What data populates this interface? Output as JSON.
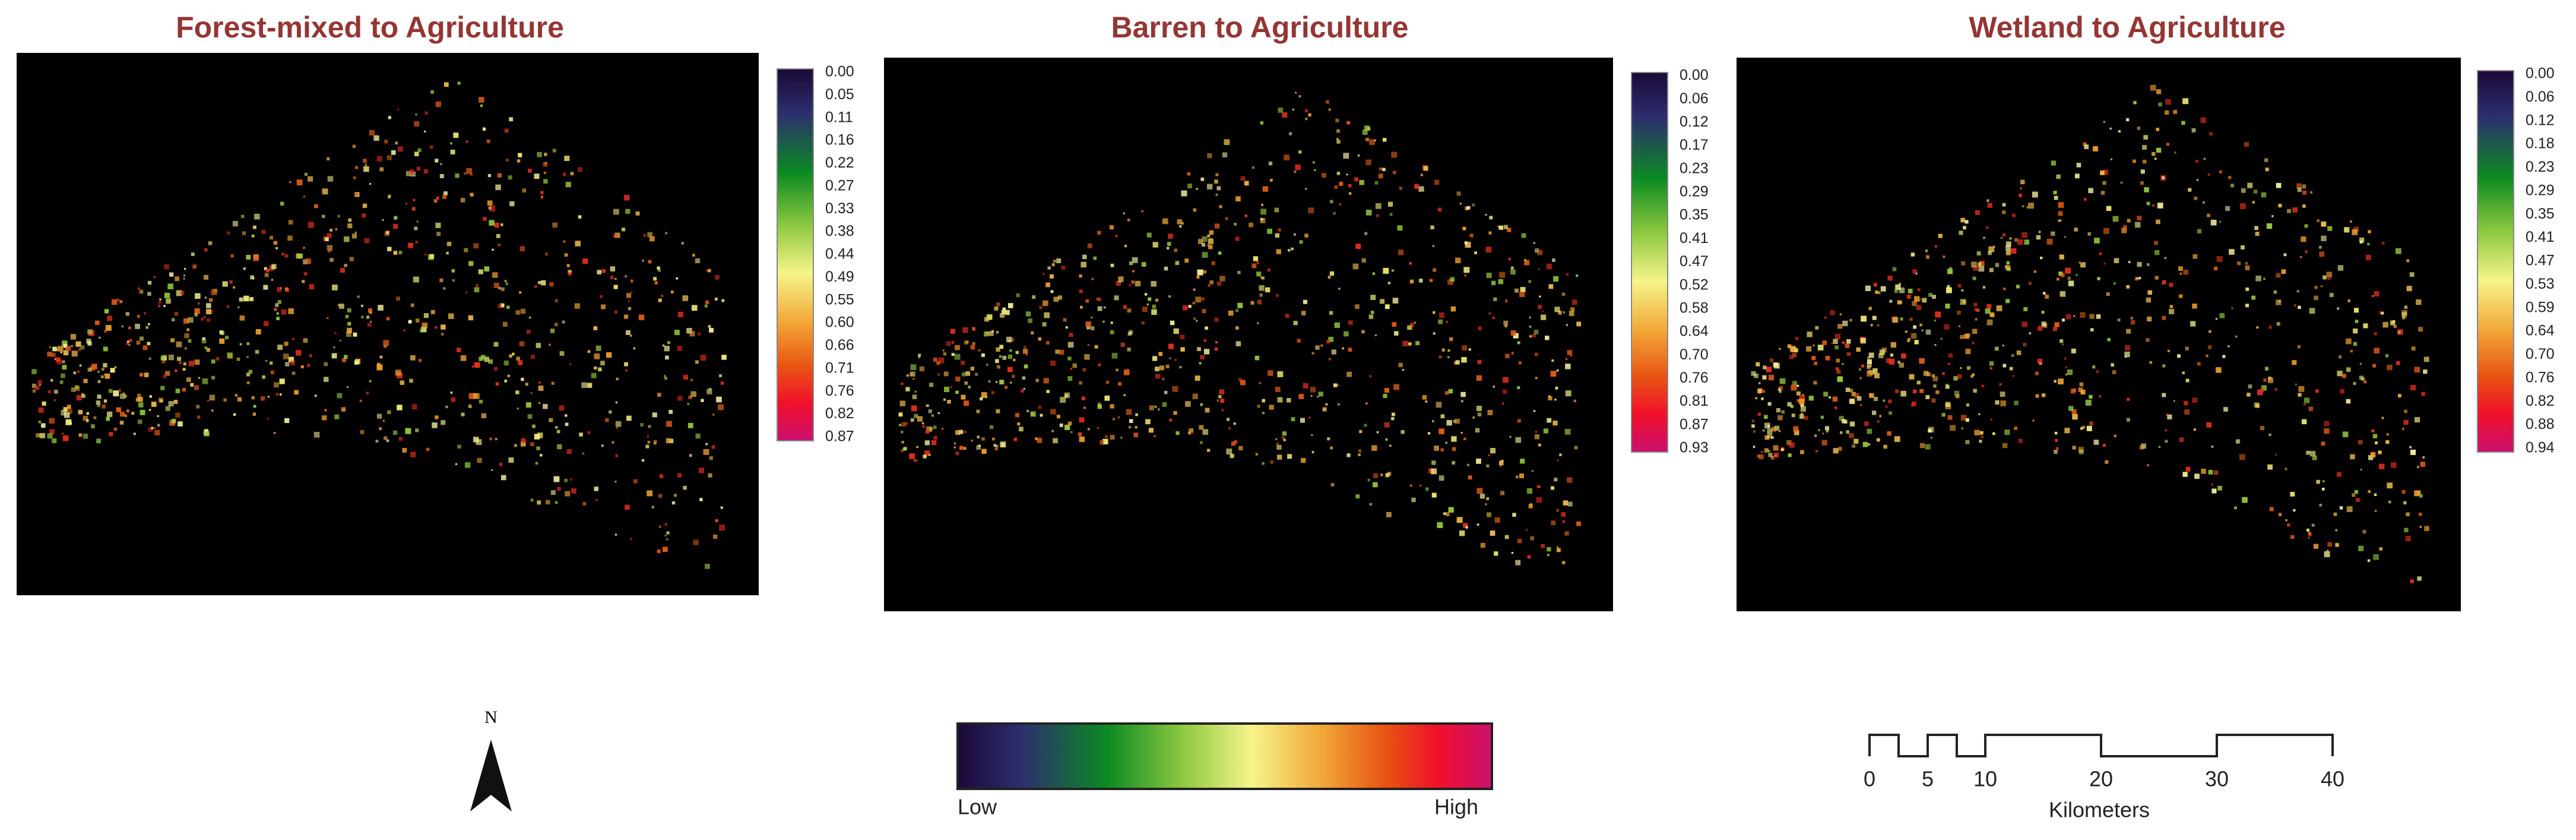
{
  "panels": [
    {
      "title": "Forest-mixed to Agriculture",
      "legend_labels": [
        "0.00",
        "0.05",
        "0.11",
        "0.16",
        "0.22",
        "0.27",
        "0.33",
        "0.38",
        "0.44",
        "0.49",
        "0.55",
        "0.60",
        "0.66",
        "0.71",
        "0.76",
        "0.82",
        "0.87"
      ]
    },
    {
      "title": "Barren to Agriculture",
      "legend_labels": [
        "0.00",
        "0.06",
        "0.12",
        "0.17",
        "0.23",
        "0.29",
        "0.35",
        "0.41",
        "0.47",
        "0.52",
        "0.58",
        "0.64",
        "0.70",
        "0.76",
        "0.81",
        "0.87",
        "0.93"
      ]
    },
    {
      "title": "Wetland to Agriculture",
      "legend_labels": [
        "0.00",
        "0.06",
        "0.12",
        "0.18",
        "0.23",
        "0.29",
        "0.35",
        "0.41",
        "0.47",
        "0.53",
        "0.59",
        "0.64",
        "0.70",
        "0.76",
        "0.82",
        "0.88",
        "0.94"
      ]
    }
  ],
  "north_arrow": {
    "label": "N"
  },
  "color_legend": {
    "low": "Low",
    "high": "High"
  },
  "scale_bar": {
    "labels": [
      "0",
      "5",
      "10",
      "20",
      "30",
      "40"
    ],
    "unit": "Kilometers"
  }
}
